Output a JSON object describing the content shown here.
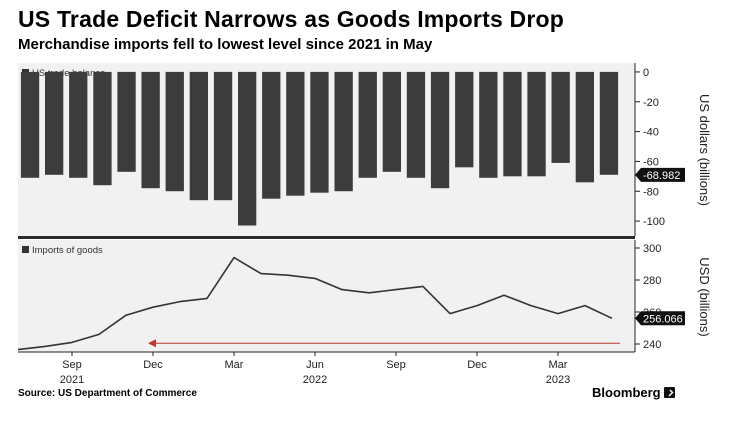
{
  "title": "US Trade Deficit Narrows as Goods Imports Drop",
  "subtitle": "Merchandise imports fell to lowest level since 2021 in May",
  "source": "Source: US Department of Commerce",
  "brand": "Bloomberg",
  "colors": {
    "bar": "#3c3c3c",
    "line": "#333333",
    "arrow": "#c0392b",
    "panel": "#f1f1f1",
    "callout": "#111111"
  },
  "chart_data": [
    {
      "type": "bar",
      "legend": "US trade balance",
      "ylabel": "US dollars (billions)",
      "ylim": [
        -110,
        6
      ],
      "yticks": [
        0,
        -20,
        -40,
        -60,
        -80,
        -100
      ],
      "ytick_labels": [
        "0",
        "-20",
        "-40",
        "-60",
        "-80",
        "-100"
      ],
      "values": [
        -71,
        -69,
        -71,
        -76,
        -67,
        -78,
        -80,
        -86,
        -86,
        -103,
        -85,
        -83,
        -81,
        -80,
        -71,
        -67,
        -71,
        -78,
        -64,
        -71,
        -70,
        -70,
        -61,
        -74,
        -68.982
      ],
      "last_value_label": "-68.982",
      "grid": false
    },
    {
      "type": "line",
      "legend": "Imports of goods",
      "ylabel": "USD (billions)",
      "ylim": [
        235,
        305
      ],
      "yticks": [
        240,
        260,
        280,
        300
      ],
      "ytick_labels": [
        "240",
        "260",
        "280",
        "300"
      ],
      "x": [
        "2021-07",
        "2021-08",
        "2021-09",
        "2021-10",
        "2021-11",
        "2021-12",
        "2022-01",
        "2022-02",
        "2022-03",
        "2022-04",
        "2022-05",
        "2022-06",
        "2022-07",
        "2022-08",
        "2022-09",
        "2022-10",
        "2022-11",
        "2022-12",
        "2023-01",
        "2023-02",
        "2023-03",
        "2023-04",
        "2023-05"
      ],
      "values": [
        236.5,
        238.5,
        241,
        246,
        258,
        263,
        266.5,
        268.5,
        294,
        284,
        283,
        281,
        274,
        272,
        274,
        276,
        259,
        264,
        270.5,
        264,
        259,
        264,
        256.066
      ],
      "last_value_label": "256.066",
      "annotation": "arrow pointing left",
      "grid": false
    }
  ],
  "xaxis": {
    "ticks": [
      {
        "label": "Sep",
        "year": "2021"
      },
      {
        "label": "Dec",
        "year": ""
      },
      {
        "label": "Mar",
        "year": ""
      },
      {
        "label": "Jun",
        "year": "2022"
      },
      {
        "label": "Sep",
        "year": ""
      },
      {
        "label": "Dec",
        "year": ""
      },
      {
        "label": "Mar",
        "year": "2023"
      }
    ]
  }
}
